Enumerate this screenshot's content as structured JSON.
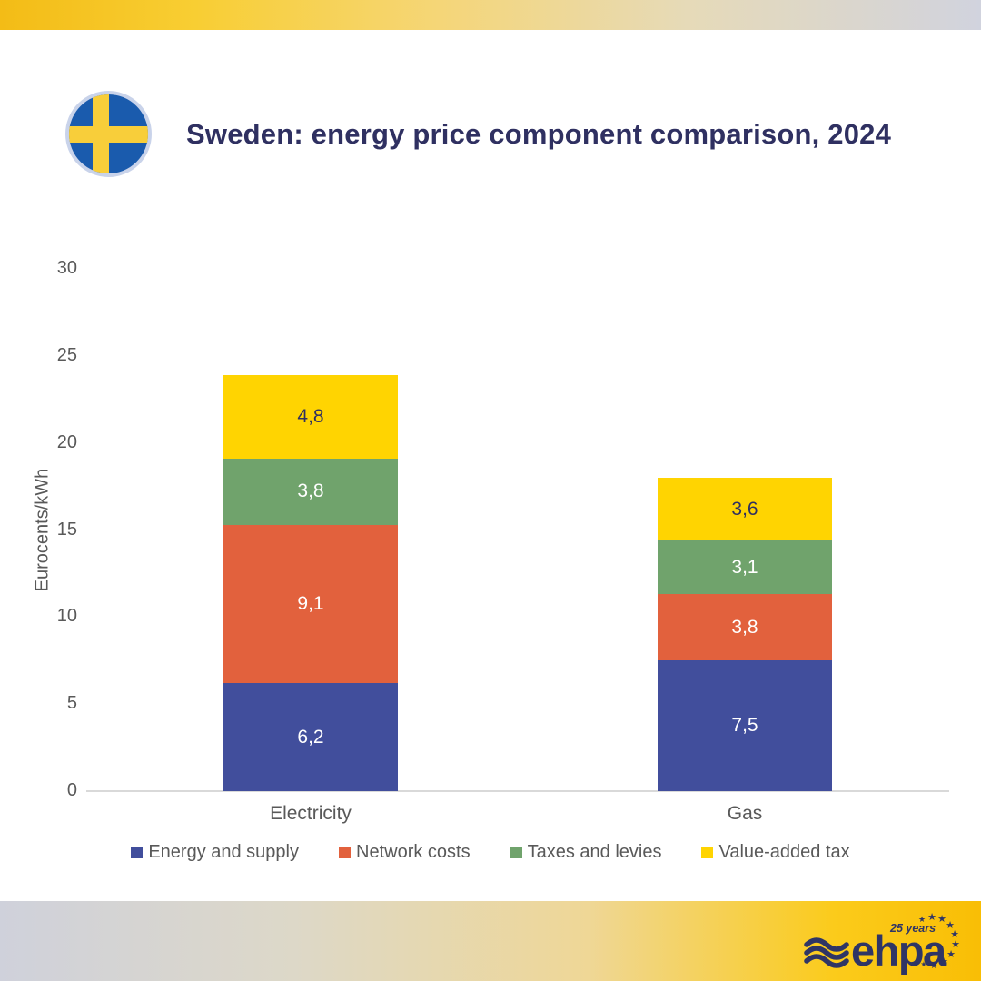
{
  "header": {
    "title": "Sweden: energy price component comparison, 2024"
  },
  "chart_data": {
    "type": "bar",
    "stacked": true,
    "categories": [
      "Electricity",
      "Gas"
    ],
    "series": [
      {
        "name": "Energy and supply",
        "values": [
          6.2,
          7.5
        ],
        "labels": [
          "6,2",
          "7,5"
        ],
        "color": "#414E9C",
        "label_color": "#FFFFFF"
      },
      {
        "name": "Network costs",
        "values": [
          9.1,
          3.8
        ],
        "labels": [
          "9,1",
          "3,8"
        ],
        "color": "#E2613D",
        "label_color": "#FFFFFF"
      },
      {
        "name": "Taxes and levies",
        "values": [
          3.8,
          3.1
        ],
        "labels": [
          "3,8",
          "3,1"
        ],
        "color": "#70A36C",
        "label_color": "#FFFFFF"
      },
      {
        "name": "Value-added tax",
        "values": [
          4.8,
          3.6
        ],
        "labels": [
          "4,8",
          "3,6"
        ],
        "color": "#FFD401",
        "label_color": "#2F3061"
      }
    ],
    "totals": [
      23.9,
      18.0
    ],
    "ylabel": "Eurocents/kWh",
    "ylim": [
      0,
      30
    ],
    "yticks": [
      "0",
      "5",
      "10",
      "15",
      "20",
      "25",
      "30"
    ],
    "grid": false,
    "legend_position": "bottom"
  },
  "footer": {
    "logo_text": "ehpa",
    "logo_badge": "25 years"
  },
  "colors": {
    "accent_navy": "#2F3061",
    "axis_text_gray": "#595959",
    "axis_line": "#D9D9D9",
    "flag_blue": "#1A5BAD",
    "flag_yellow": "#F8CE3A",
    "flag_ring": "#C9D3EA",
    "band_gold": "#F9BE05",
    "band_lavender": "#D1D3DE",
    "logo_navy": "#2F3565"
  }
}
